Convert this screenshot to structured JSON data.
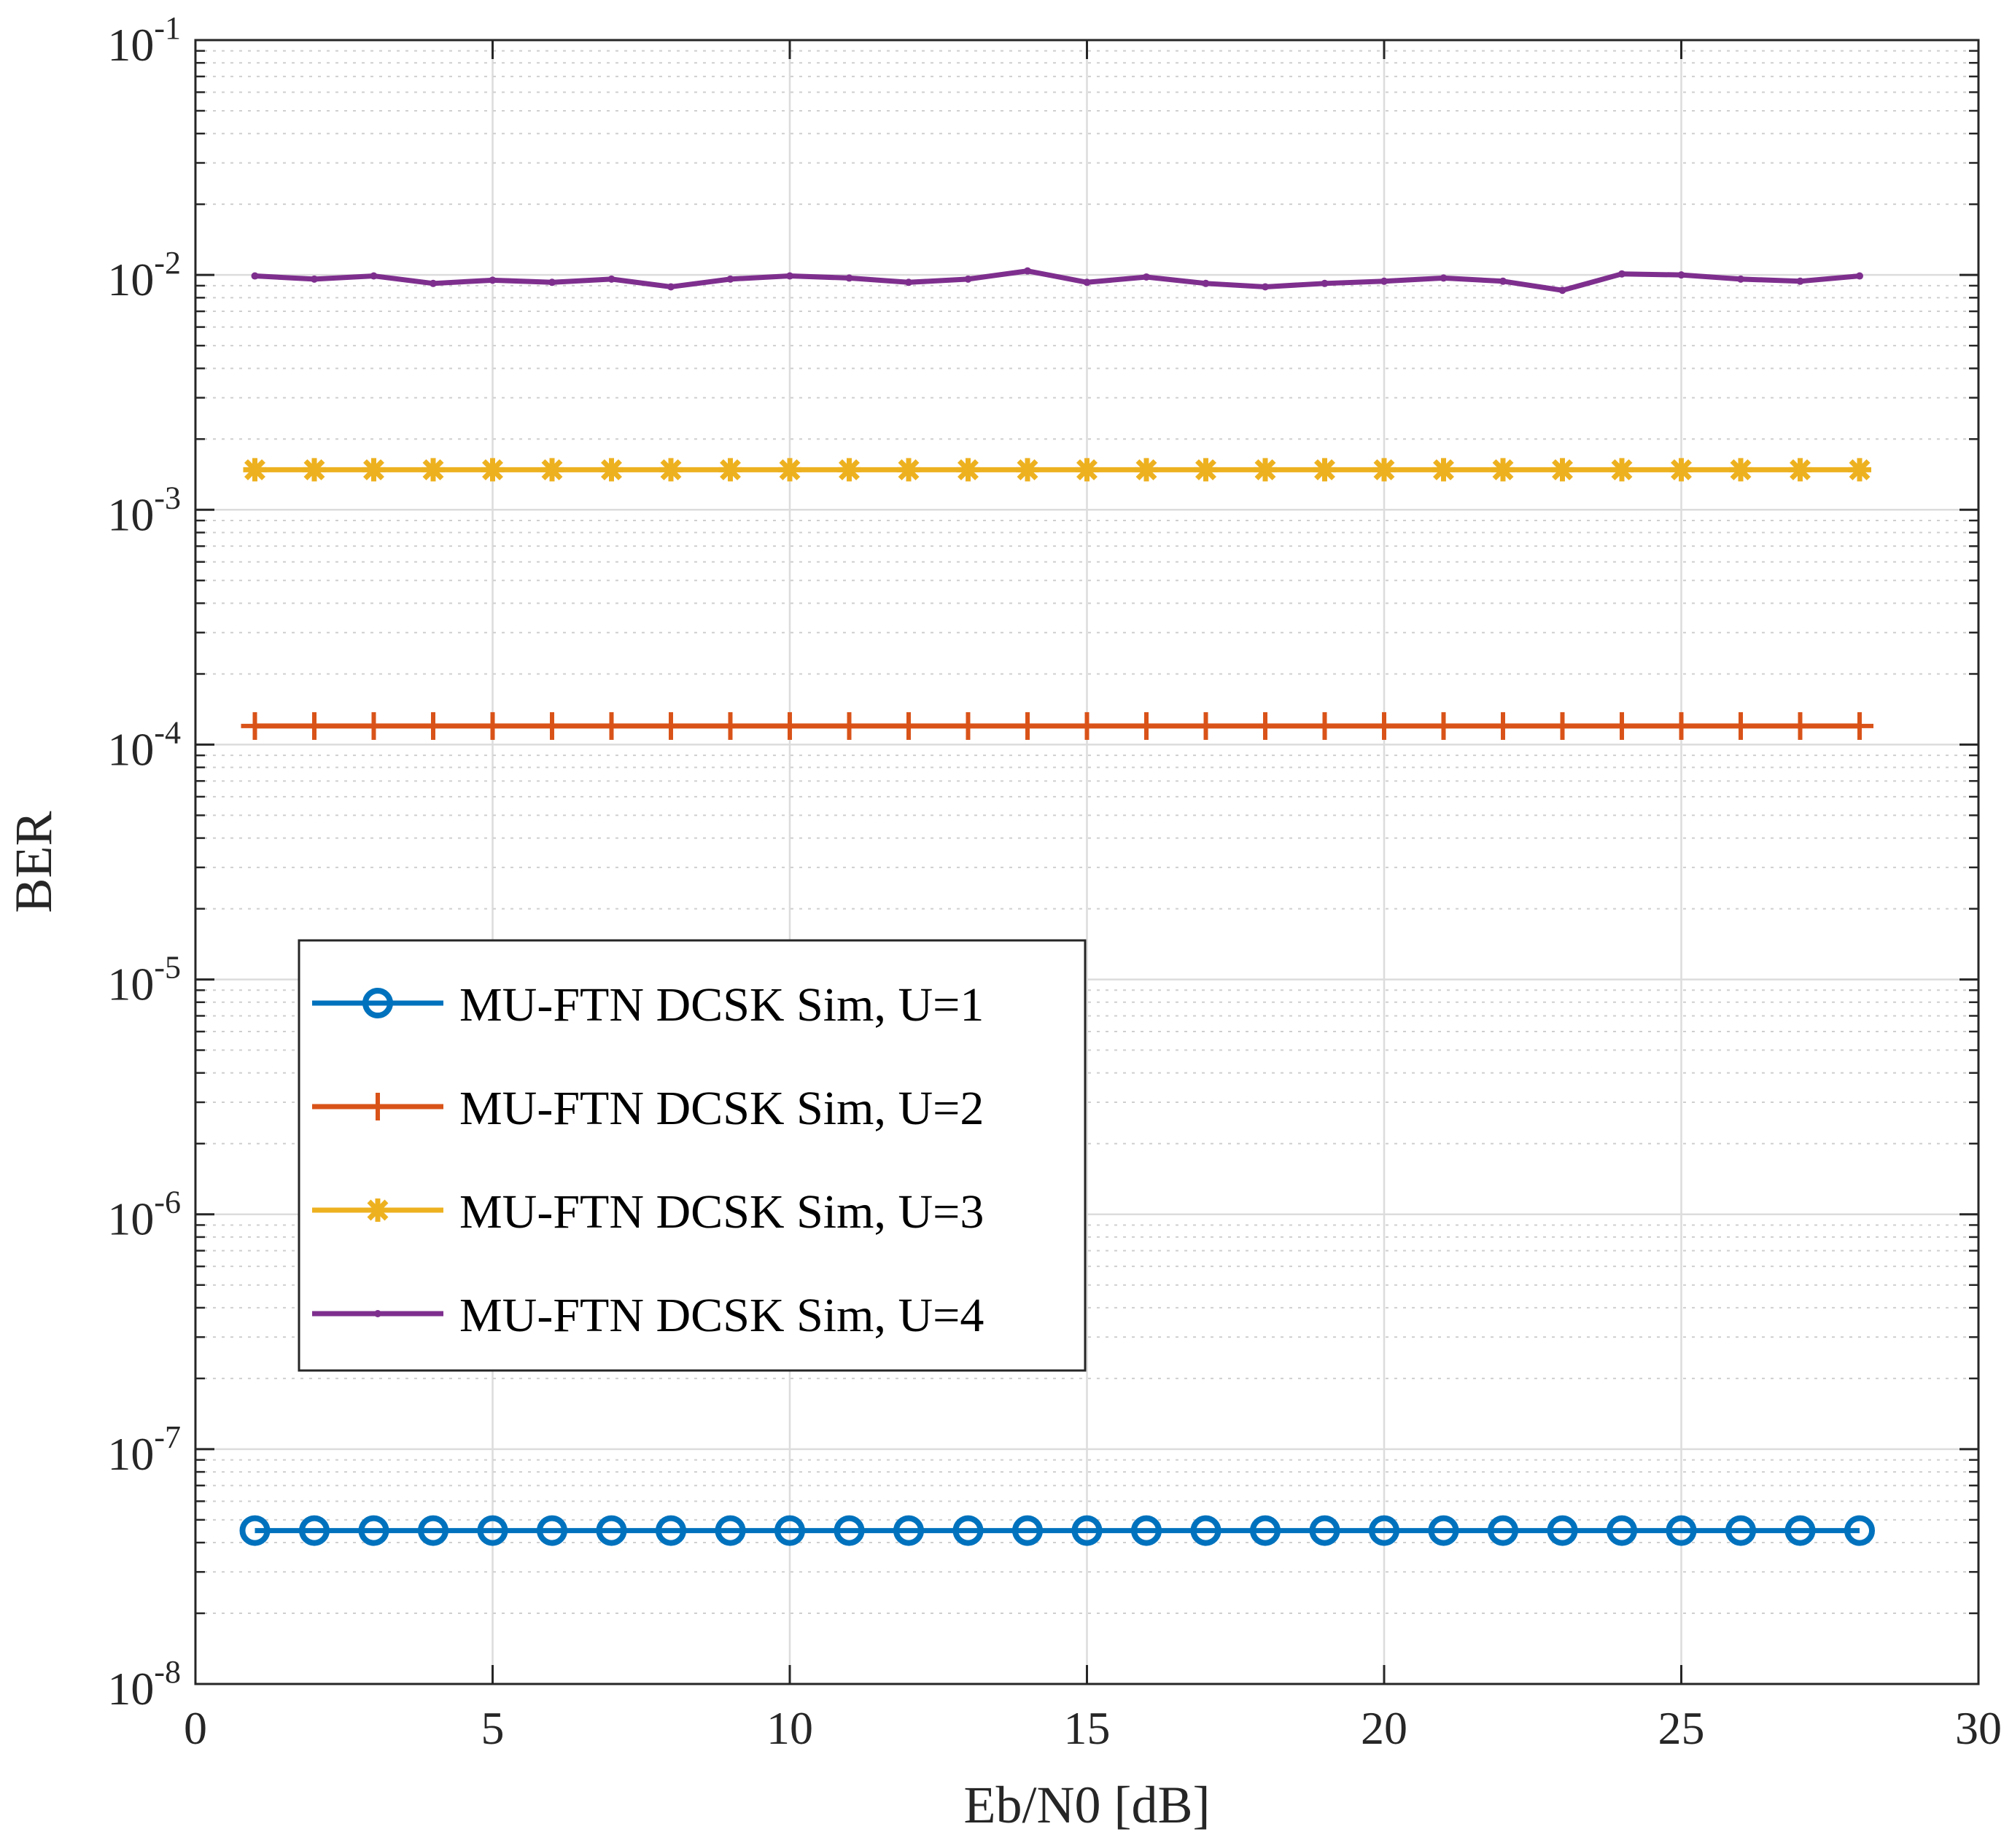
{
  "chart_data": {
    "type": "line",
    "title": "",
    "xlabel": "Eb/N0 [dB]",
    "ylabel": "BER",
    "xlim": [
      0,
      30
    ],
    "ylim": [
      1e-08,
      0.1
    ],
    "yscale": "log",
    "grid": true,
    "legend_location": "center-left",
    "x_ticks": [
      "0",
      "5",
      "10",
      "15",
      "20",
      "25",
      "30"
    ],
    "y_ticks": [
      {
        "base": "10",
        "exp": "-1"
      },
      {
        "base": "10",
        "exp": "-2"
      },
      {
        "base": "10",
        "exp": "-3"
      },
      {
        "base": "10",
        "exp": "-4"
      },
      {
        "base": "10",
        "exp": "-5"
      },
      {
        "base": "10",
        "exp": "-6"
      },
      {
        "base": "10",
        "exp": "-7"
      },
      {
        "base": "10",
        "exp": "-8"
      }
    ],
    "x": [
      1,
      2,
      3,
      4,
      5,
      6,
      7,
      8,
      9,
      10,
      11,
      12,
      13,
      14,
      15,
      16,
      17,
      18,
      19,
      20,
      21,
      22,
      23,
      24,
      25,
      26,
      27,
      28
    ],
    "series": [
      {
        "name": "MU-FTN DCSK Sim, U=1",
        "color": "#0072BD",
        "marker": "circle",
        "values": [
          4.5e-08,
          4.5e-08,
          4.5e-08,
          4.5e-08,
          4.5e-08,
          4.5e-08,
          4.5e-08,
          4.5e-08,
          4.5e-08,
          4.5e-08,
          4.5e-08,
          4.5e-08,
          4.5e-08,
          4.5e-08,
          4.5e-08,
          4.5e-08,
          4.5e-08,
          4.5e-08,
          4.5e-08,
          4.5e-08,
          4.5e-08,
          4.5e-08,
          4.5e-08,
          4.5e-08,
          4.5e-08,
          4.5e-08,
          4.5e-08,
          4.5e-08
        ]
      },
      {
        "name": "MU-FTN DCSK Sim, U=2",
        "color": "#D95319",
        "marker": "plus",
        "values": [
          0.00012,
          0.00012,
          0.00012,
          0.00012,
          0.00012,
          0.00012,
          0.00012,
          0.00012,
          0.00012,
          0.00012,
          0.00012,
          0.00012,
          0.00012,
          0.00012,
          0.00012,
          0.00012,
          0.00012,
          0.00012,
          0.00012,
          0.00012,
          0.00012,
          0.00012,
          0.00012,
          0.00012,
          0.00012,
          0.00012,
          0.00012,
          0.00012
        ]
      },
      {
        "name": "MU-FTN DCSK Sim, U=3",
        "color": "#EDB120",
        "marker": "asterisk",
        "values": [
          0.00148,
          0.00148,
          0.00148,
          0.00148,
          0.00148,
          0.00148,
          0.00148,
          0.00148,
          0.00148,
          0.00148,
          0.00148,
          0.00148,
          0.00148,
          0.00148,
          0.00148,
          0.00148,
          0.00148,
          0.00148,
          0.00148,
          0.00148,
          0.00148,
          0.00148,
          0.00148,
          0.00148,
          0.00148,
          0.00148,
          0.00148,
          0.00148
        ]
      },
      {
        "name": "MU-FTN DCSK Sim, U=4",
        "color": "#7E2F8E",
        "marker": "point",
        "values": [
          0.0099,
          0.0096,
          0.0099,
          0.0092,
          0.0095,
          0.0093,
          0.0096,
          0.0089,
          0.0096,
          0.0099,
          0.0097,
          0.0093,
          0.0096,
          0.0104,
          0.0093,
          0.0098,
          0.0092,
          0.0089,
          0.0092,
          0.0094,
          0.0097,
          0.0094,
          0.0086,
          0.0101,
          0.01,
          0.0096,
          0.0094,
          0.0099
        ]
      }
    ]
  }
}
